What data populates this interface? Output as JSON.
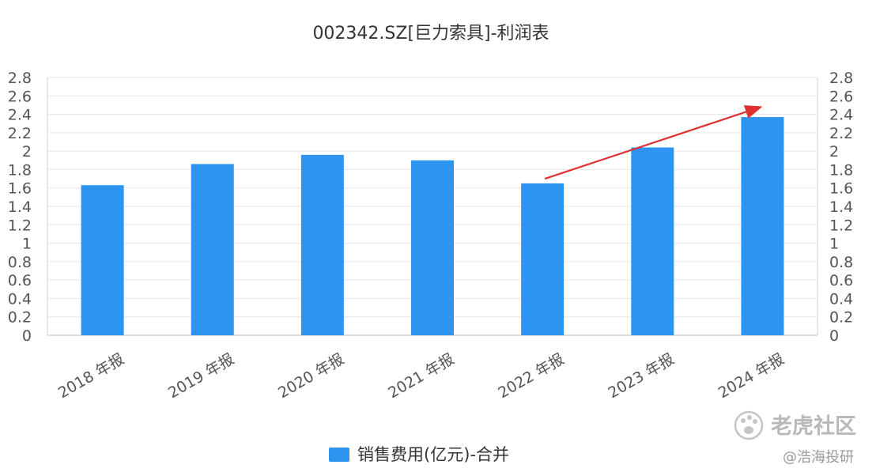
{
  "chart_data": {
    "type": "bar",
    "title": "002342.SZ[巨力索具]-利润表",
    "categories": [
      "2018 年报",
      "2019 年报",
      "2020 年报",
      "2021 年报",
      "2022 年报",
      "2023 年报",
      "2024 年报"
    ],
    "series": [
      {
        "name": "销售费用(亿元)-合并",
        "values": [
          1.63,
          1.86,
          1.96,
          1.9,
          1.65,
          2.04,
          2.37
        ],
        "color": "#2d95f0"
      }
    ],
    "y_ticks": [
      "0",
      "0.2",
      "0.4",
      "0.6",
      "0.8",
      "1",
      "1.2",
      "1.4",
      "1.6",
      "1.8",
      "2",
      "2.2",
      "2.4",
      "2.6",
      "2.8"
    ],
    "ylim": [
      0,
      2.8
    ],
    "grid": true,
    "legend_position": "bottom-center",
    "annotation": {
      "type": "arrow",
      "color": "#e03030",
      "from": {
        "x": "2022 年报",
        "y": 1.7
      },
      "to": {
        "x": "2024 年报",
        "y": 2.48
      }
    }
  },
  "watermark": {
    "main": "老虎社区",
    "sub": "@浩海投研",
    "icon": "tiger-paw-icon"
  }
}
